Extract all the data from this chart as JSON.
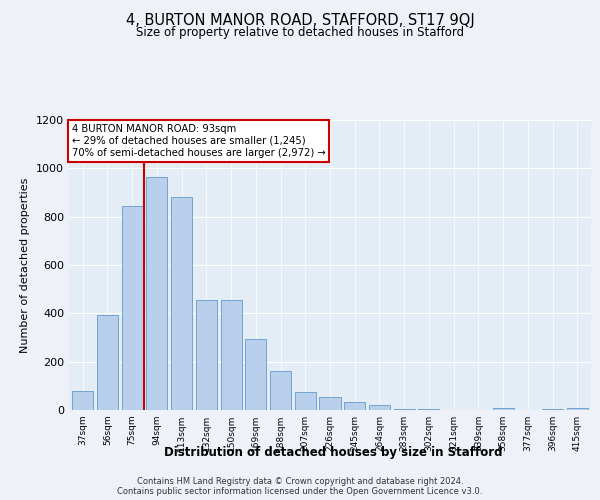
{
  "title": "4, BURTON MANOR ROAD, STAFFORD, ST17 9QJ",
  "subtitle": "Size of property relative to detached houses in Stafford",
  "xlabel": "Distribution of detached houses by size in Stafford",
  "ylabel": "Number of detached properties",
  "categories": [
    "37sqm",
    "56sqm",
    "75sqm",
    "94sqm",
    "113sqm",
    "132sqm",
    "150sqm",
    "169sqm",
    "188sqm",
    "207sqm",
    "226sqm",
    "245sqm",
    "264sqm",
    "283sqm",
    "302sqm",
    "321sqm",
    "339sqm",
    "358sqm",
    "377sqm",
    "396sqm",
    "415sqm"
  ],
  "values": [
    80,
    395,
    845,
    965,
    880,
    455,
    455,
    295,
    160,
    75,
    55,
    35,
    20,
    5,
    5,
    0,
    0,
    10,
    0,
    5,
    10
  ],
  "bar_color": "#b8d0eb",
  "bar_edge_color": "#6699cc",
  "property_label": "4 BURTON MANOR ROAD: 93sqm",
  "line1": "← 29% of detached houses are smaller (1,245)",
  "line2": "70% of semi-detached houses are larger (2,972) →",
  "vline_pos": 2.5,
  "vline_color": "#cc0000",
  "annotation_box_color": "#cc0000",
  "ylim": [
    0,
    1200
  ],
  "yticks": [
    0,
    200,
    400,
    600,
    800,
    1000,
    1200
  ],
  "footer1": "Contains HM Land Registry data © Crown copyright and database right 2024.",
  "footer2": "Contains public sector information licensed under the Open Government Licence v3.0.",
  "background_color": "#eef2f8",
  "plot_background": "#e4ecf5"
}
